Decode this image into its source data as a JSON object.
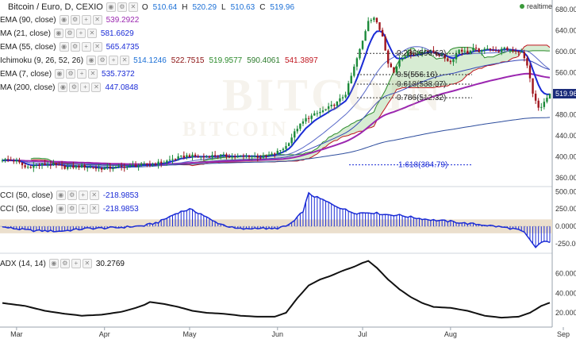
{
  "header": {
    "symbol": "Bitcoin / Euro, D, CEXIO",
    "open_label": "O",
    "open": "510.64",
    "high_label": "H",
    "high": "520.29",
    "low_label": "L",
    "low": "510.63",
    "close_label": "C",
    "close": "519.96",
    "realtime_label": "realtime"
  },
  "legend": [
    {
      "name": "EMA (90, close)",
      "values": [
        {
          "text": "539.2922",
          "color": "#9b27b0"
        }
      ]
    },
    {
      "name": "MA (21, close)",
      "values": [
        {
          "text": "581.6629",
          "color": "#1a2bd6"
        }
      ]
    },
    {
      "name": "EMA (55, close)",
      "values": [
        {
          "text": "565.4735",
          "color": "#1a2bd6"
        }
      ]
    },
    {
      "name": "Ichimoku (9, 26, 52, 26)",
      "values": [
        {
          "text": "514.1246",
          "color": "#1a6fd6"
        },
        {
          "text": "522.7515",
          "color": "#8b1010"
        },
        {
          "text": "519.9577",
          "color": "#2a8a2a"
        },
        {
          "text": "590.4061",
          "color": "#2a7a2a"
        },
        {
          "text": "541.3897",
          "color": "#c0151e"
        }
      ]
    },
    {
      "name": "EMA (7, close)",
      "values": [
        {
          "text": "535.7372",
          "color": "#1a2bd6"
        }
      ]
    },
    {
      "name": "MA (200, close)",
      "values": [
        {
          "text": "447.0848",
          "color": "#1a2bd6"
        }
      ]
    }
  ],
  "cci_legends": [
    {
      "name": "CCI (50, close)",
      "value": "-218.9853"
    },
    {
      "name": "CCI (50, close)",
      "value": "-218.9853"
    }
  ],
  "adx_legend": {
    "name": "ADX (14, 14)",
    "value": "30.2769"
  },
  "watermark": {
    "line1": "BITCOIN",
    "line2": "BITCOIN"
  },
  "colors": {
    "up": "#1c8a3a",
    "down": "#a0161e",
    "ema7": "#1a2bd6",
    "ema90": "#9b27b0",
    "ma200": "#2d4d9d",
    "ema55": "#3848b8",
    "kijun": "#c0151e",
    "cloud_bull": "#c9e6c4",
    "cloud_bear": "#e2d3ef",
    "cci_line": "#1a2bd6",
    "cci_band": "#e7d9c4",
    "adx": "#111111",
    "fib": "#1a2bd6"
  },
  "chart_data": [
    {
      "type": "candlestick",
      "title": "Bitcoin / Euro, D, CEXIO",
      "y_ticks": [
        360,
        400,
        440,
        480,
        520,
        560,
        600,
        640,
        680
      ],
      "ylim": [
        345,
        695
      ],
      "x_tick_labels": [
        "Mar",
        "Apr",
        "May",
        "Jun",
        "Jul",
        "Aug",
        "Sep"
      ],
      "last_price": 519.96,
      "ohlc_last": {
        "open": 510.64,
        "high": 520.29,
        "low": 510.63,
        "close": 519.96
      },
      "price_key": [
        [
          0,
          395
        ],
        [
          5,
          392
        ],
        [
          8,
          380
        ],
        [
          12,
          384
        ],
        [
          17,
          386
        ],
        [
          22,
          380
        ],
        [
          28,
          382
        ],
        [
          35,
          378
        ],
        [
          40,
          380
        ],
        [
          46,
          383
        ],
        [
          52,
          386
        ],
        [
          57,
          390
        ],
        [
          60,
          396
        ],
        [
          65,
          402
        ],
        [
          70,
          400
        ],
        [
          76,
          403
        ],
        [
          82,
          400
        ],
        [
          87,
          402
        ],
        [
          92,
          399
        ],
        [
          96,
          406
        ],
        [
          100,
          420
        ],
        [
          104,
          455
        ],
        [
          107,
          472
        ],
        [
          110,
          480
        ],
        [
          114,
          490
        ],
        [
          118,
          503
        ],
        [
          121,
          520
        ],
        [
          124,
          570
        ],
        [
          127,
          620
        ],
        [
          129,
          660
        ],
        [
          131,
          665
        ],
        [
          134,
          630
        ],
        [
          136,
          580
        ],
        [
          138,
          560
        ],
        [
          140,
          585
        ],
        [
          143,
          598
        ],
        [
          146,
          595
        ],
        [
          149,
          604
        ],
        [
          152,
          598
        ],
        [
          155,
          592
        ],
        [
          158,
          580
        ],
        [
          161,
          604
        ],
        [
          164,
          598
        ],
        [
          166,
          605
        ],
        [
          169,
          600
        ],
        [
          171,
          608
        ],
        [
          174,
          600
        ],
        [
          177,
          605
        ],
        [
          180,
          603
        ],
        [
          183,
          598
        ],
        [
          185,
          575
        ],
        [
          187,
          520
        ],
        [
          189,
          492
        ],
        [
          191,
          503
        ],
        [
          193,
          520
        ]
      ],
      "fibonacci": [
        {
          "label": "0.236(596.62)",
          "value": 596.62
        },
        {
          "label": "0.5(556.16)",
          "value": 556.16
        },
        {
          "label": "0.618(538.07)",
          "value": 538.07
        },
        {
          "label": "0.786(512.32)",
          "value": 512.32
        },
        {
          "label": "1.618(384.79)",
          "value": 384.79
        }
      ]
    },
    {
      "type": "line",
      "title": "CCI (50, close)",
      "y_ticks": [
        500,
        250,
        0,
        -250
      ],
      "y_tick_labels": [
        "500.0000",
        "250.0000",
        "0.0000",
        "-250.000"
      ],
      "ylim": [
        -375,
        560
      ],
      "band": [
        -100,
        100
      ],
      "key": [
        [
          0,
          -10
        ],
        [
          10,
          -60
        ],
        [
          20,
          -70
        ],
        [
          30,
          -30
        ],
        [
          40,
          -20
        ],
        [
          50,
          10
        ],
        [
          55,
          60
        ],
        [
          58,
          120
        ],
        [
          62,
          200
        ],
        [
          66,
          245
        ],
        [
          70,
          180
        ],
        [
          74,
          80
        ],
        [
          78,
          20
        ],
        [
          82,
          -30
        ],
        [
          86,
          -40
        ],
        [
          90,
          -20
        ],
        [
          95,
          -40
        ],
        [
          100,
          0
        ],
        [
          103,
          80
        ],
        [
          106,
          220
        ],
        [
          108,
          470
        ],
        [
          110,
          430
        ],
        [
          113,
          380
        ],
        [
          116,
          320
        ],
        [
          119,
          270
        ],
        [
          122,
          220
        ],
        [
          125,
          190
        ],
        [
          130,
          200
        ],
        [
          135,
          170
        ],
        [
          140,
          160
        ],
        [
          146,
          120
        ],
        [
          152,
          90
        ],
        [
          158,
          70
        ],
        [
          164,
          40
        ],
        [
          170,
          20
        ],
        [
          176,
          -10
        ],
        [
          181,
          -40
        ],
        [
          184,
          -90
        ],
        [
          186,
          -200
        ],
        [
          188,
          -300
        ],
        [
          190,
          -230
        ],
        [
          193,
          -219
        ]
      ]
    },
    {
      "type": "line",
      "title": "ADX (14, 14)",
      "y_ticks": [
        60,
        40,
        20
      ],
      "y_tick_labels": [
        "60.0000",
        "40.0000",
        "20.0000"
      ],
      "ylim": [
        7,
        80
      ],
      "key": [
        [
          0,
          30
        ],
        [
          8,
          27
        ],
        [
          15,
          22
        ],
        [
          22,
          19
        ],
        [
          28,
          17
        ],
        [
          35,
          18
        ],
        [
          42,
          21
        ],
        [
          47,
          25
        ],
        [
          50,
          28
        ],
        [
          52,
          31
        ],
        [
          57,
          29
        ],
        [
          62,
          26
        ],
        [
          67,
          22
        ],
        [
          72,
          20
        ],
        [
          78,
          19
        ],
        [
          84,
          17
        ],
        [
          90,
          16
        ],
        [
          96,
          16
        ],
        [
          100,
          20
        ],
        [
          104,
          35
        ],
        [
          108,
          48
        ],
        [
          112,
          54
        ],
        [
          116,
          58
        ],
        [
          120,
          63
        ],
        [
          124,
          67
        ],
        [
          127,
          71
        ],
        [
          129,
          73
        ],
        [
          132,
          66
        ],
        [
          136,
          54
        ],
        [
          140,
          44
        ],
        [
          144,
          36
        ],
        [
          148,
          30
        ],
        [
          152,
          26
        ],
        [
          158,
          25
        ],
        [
          164,
          22
        ],
        [
          170,
          17
        ],
        [
          176,
          15
        ],
        [
          182,
          16
        ],
        [
          186,
          20
        ],
        [
          190,
          27
        ],
        [
          193,
          30.28
        ]
      ]
    }
  ]
}
